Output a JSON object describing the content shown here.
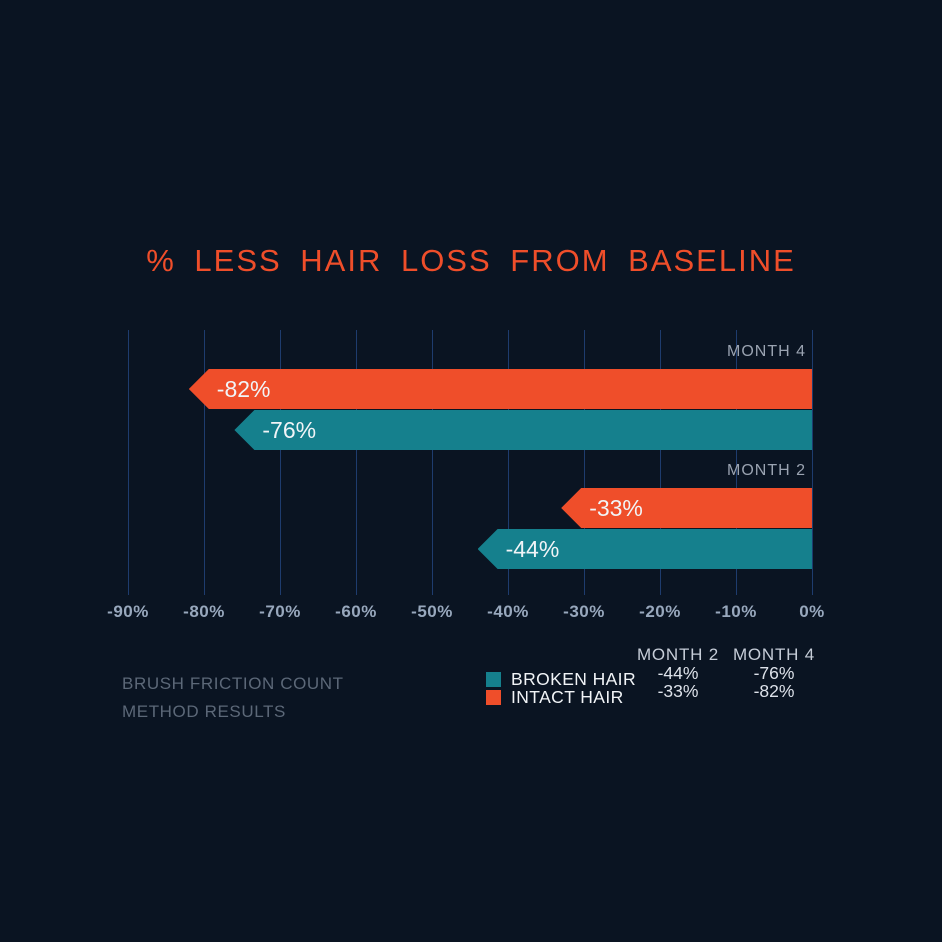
{
  "title": "% LESS HAIR LOSS FROM BASELINE",
  "colors": {
    "background": "#0a1422",
    "orange": "#ef4e2a",
    "teal": "#15808d",
    "grid": "#1e3c6e",
    "axis_text": "#98a8bd",
    "month_label": "#9aa3b1",
    "muted_text": "#5c6878",
    "white_text": "#f1f4f7",
    "header_text": "#c6cdd8",
    "value_text": "#dde2ea"
  },
  "chart_data": {
    "type": "bar",
    "orientation": "horizontal",
    "title": "% LESS HAIR LOSS FROM BASELINE",
    "axis": {
      "min": -90,
      "max": 0,
      "step": 10,
      "tick_labels": [
        "-90%",
        "-80%",
        "-70%",
        "-60%",
        "-50%",
        "-40%",
        "-30%",
        "-20%",
        "-10%",
        "0%"
      ]
    },
    "grid": true,
    "groups": [
      {
        "label": "MONTH 4",
        "bars": [
          {
            "series": "INTACT HAIR",
            "value": -82,
            "label": "-82%",
            "color": "orange"
          },
          {
            "series": "BROKEN HAIR",
            "value": -76,
            "label": "-76%",
            "color": "teal"
          }
        ]
      },
      {
        "label": "MONTH 2",
        "bars": [
          {
            "series": "INTACT HAIR",
            "value": -33,
            "label": "-33%",
            "color": "orange"
          },
          {
            "series": "BROKEN HAIR",
            "value": -44,
            "label": "-44%",
            "color": "teal"
          }
        ]
      }
    ]
  },
  "footer": {
    "note_line1": "BRUSH FRICTION COUNT",
    "note_line2": "METHOD RESULTS",
    "legend": [
      {
        "label": "BROKEN HAIR",
        "color": "teal"
      },
      {
        "label": "INTACT HAIR",
        "color": "orange"
      }
    ],
    "table": {
      "columns": [
        "MONTH 2",
        "MONTH 4"
      ],
      "rows": [
        {
          "series": "BROKEN HAIR",
          "values": [
            "-44%",
            "-76%"
          ]
        },
        {
          "series": "INTACT HAIR",
          "values": [
            "-33%",
            "-82%"
          ]
        }
      ]
    }
  }
}
